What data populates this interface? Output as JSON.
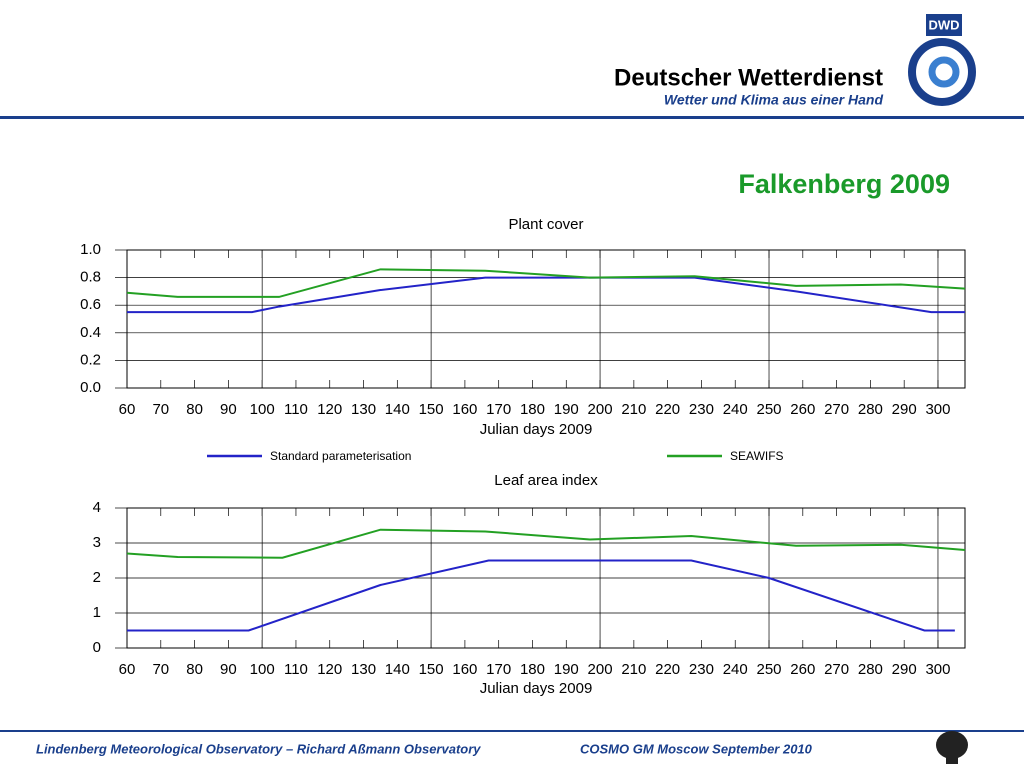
{
  "header": {
    "logo": "DWD",
    "name": "Deutscher Wetterdienst",
    "slogan": "Wetter und Klima aus einer Hand"
  },
  "title": "Falkenberg 2009",
  "chart_data": [
    {
      "type": "line",
      "title": "Plant cover",
      "x_label": "Julian days 2009",
      "xlim": [
        60,
        308
      ],
      "xticks": [
        60,
        70,
        80,
        90,
        100,
        110,
        120,
        130,
        140,
        150,
        160,
        170,
        180,
        190,
        200,
        210,
        220,
        230,
        240,
        250,
        260,
        270,
        280,
        290,
        300
      ],
      "ylim": [
        0,
        1
      ],
      "yticks": [
        {
          "value": 0,
          "label": "0.0"
        },
        0.2,
        0.4,
        0.6,
        0.8,
        {
          "value": 1,
          "label": "1.0"
        }
      ],
      "grid_x": [
        100,
        150,
        200,
        250,
        300
      ],
      "series": [
        {
          "name": "Standard parameterisation",
          "color": "#2323c8",
          "x": [
            60,
            97,
            105,
            135,
            166,
            228,
            258,
            298,
            308
          ],
          "values": [
            0.55,
            0.55,
            0.59,
            0.71,
            0.8,
            0.8,
            0.7,
            0.55,
            0.55
          ]
        },
        {
          "name": "SEAWIFS",
          "color": "#23a023",
          "x": [
            60,
            75,
            105,
            135,
            166,
            197,
            228,
            258,
            289,
            308
          ],
          "values": [
            0.69,
            0.66,
            0.66,
            0.86,
            0.85,
            0.8,
            0.81,
            0.74,
            0.75,
            0.72
          ]
        }
      ]
    },
    {
      "type": "line",
      "title": "Leaf area index",
      "x_label": "Julian days 2009",
      "xlim": [
        60,
        308
      ],
      "xticks": [
        60,
        70,
        80,
        90,
        100,
        110,
        120,
        130,
        140,
        150,
        160,
        170,
        180,
        190,
        200,
        210,
        220,
        230,
        240,
        250,
        260,
        270,
        280,
        290,
        300
      ],
      "ylim": [
        0,
        4
      ],
      "yticks": [
        0,
        1,
        2,
        3,
        4
      ],
      "grid_x": [
        100,
        150,
        200,
        250,
        300
      ],
      "series": [
        {
          "color": "#2323c8",
          "x": [
            60,
            96,
            135,
            167,
            227,
            250,
            296,
            305
          ],
          "values": [
            0.5,
            0.5,
            1.8,
            2.5,
            2.5,
            2.0,
            0.5,
            0.5
          ]
        },
        {
          "color": "#23a023",
          "x": [
            60,
            75,
            106,
            135,
            166,
            197,
            227,
            258,
            289,
            308
          ],
          "values": [
            2.7,
            2.6,
            2.58,
            3.38,
            3.33,
            3.1,
            3.2,
            2.92,
            2.95,
            2.8
          ]
        }
      ]
    }
  ],
  "footer": {
    "left": "Lindenberg Meteorological Observatory – Richard Aßmann Observatory",
    "right": "COSMO GM Moscow September 2010"
  }
}
